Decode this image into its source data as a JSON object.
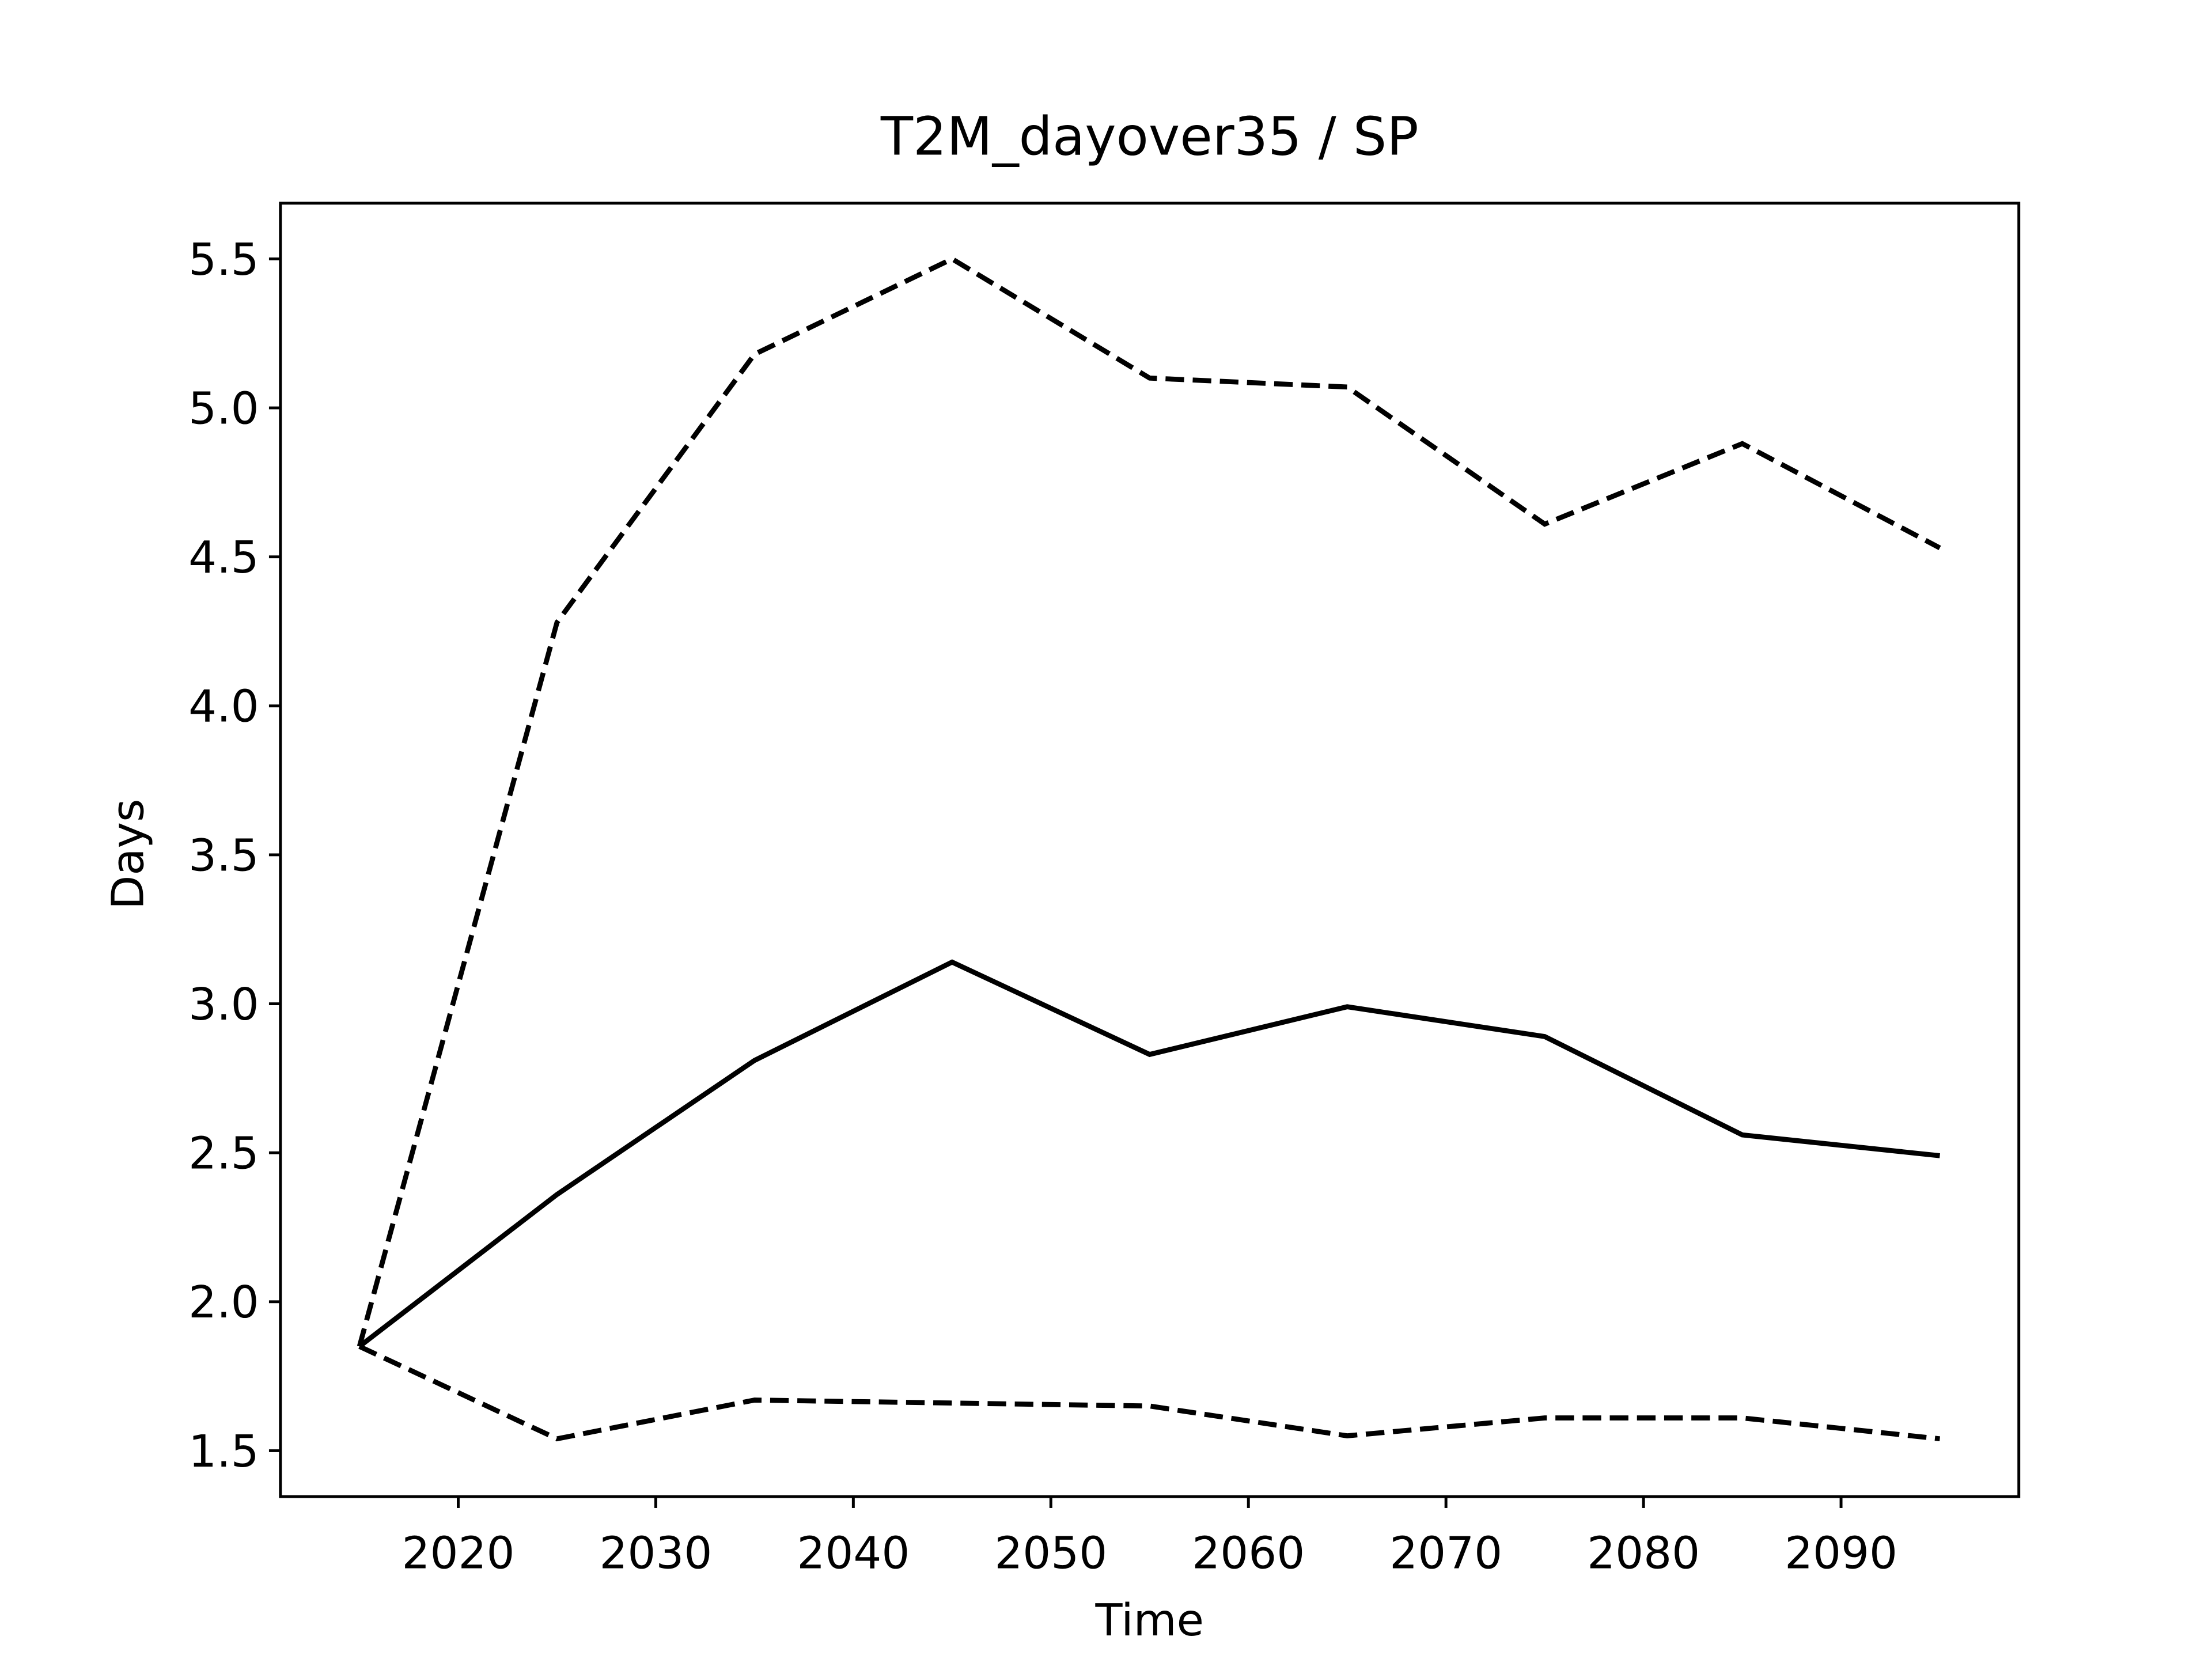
{
  "chart_data": {
    "type": "line",
    "title": "T2M_dayover35 / SP",
    "xlabel": "Time",
    "ylabel": "Days",
    "x": [
      2015,
      2025,
      2035,
      2045,
      2055,
      2065,
      2075,
      2085,
      2095
    ],
    "series": [
      {
        "color": "#000000",
        "linestyle": "dashed",
        "values": [
          1.85,
          4.28,
          5.18,
          5.5,
          5.1,
          5.07,
          4.61,
          4.88,
          4.53
        ]
      },
      {
        "color": "#000000",
        "linestyle": "solid",
        "values": [
          1.85,
          2.36,
          2.81,
          3.14,
          2.83,
          2.99,
          2.89,
          2.56,
          2.49
        ]
      },
      {
        "color": "#000000",
        "linestyle": "dashed",
        "values": [
          1.85,
          1.54,
          1.67,
          1.66,
          1.65,
          1.55,
          1.61,
          1.61,
          1.54
        ]
      }
    ],
    "xlim": [
      2011,
      2099
    ],
    "xticks": [
      2020,
      2030,
      2040,
      2050,
      2060,
      2070,
      2080,
      2090
    ],
    "ylim": [
      1.346,
      5.687
    ],
    "yticks": [
      1.5,
      {
        "value": 2,
        "label": "2.0"
      },
      2.5,
      {
        "value": 3,
        "label": "3.0"
      },
      3.5,
      {
        "value": 4,
        "label": "4.0"
      },
      4.5,
      {
        "value": 5,
        "label": "5.0"
      },
      5.5
    ],
    "grid": false
  }
}
